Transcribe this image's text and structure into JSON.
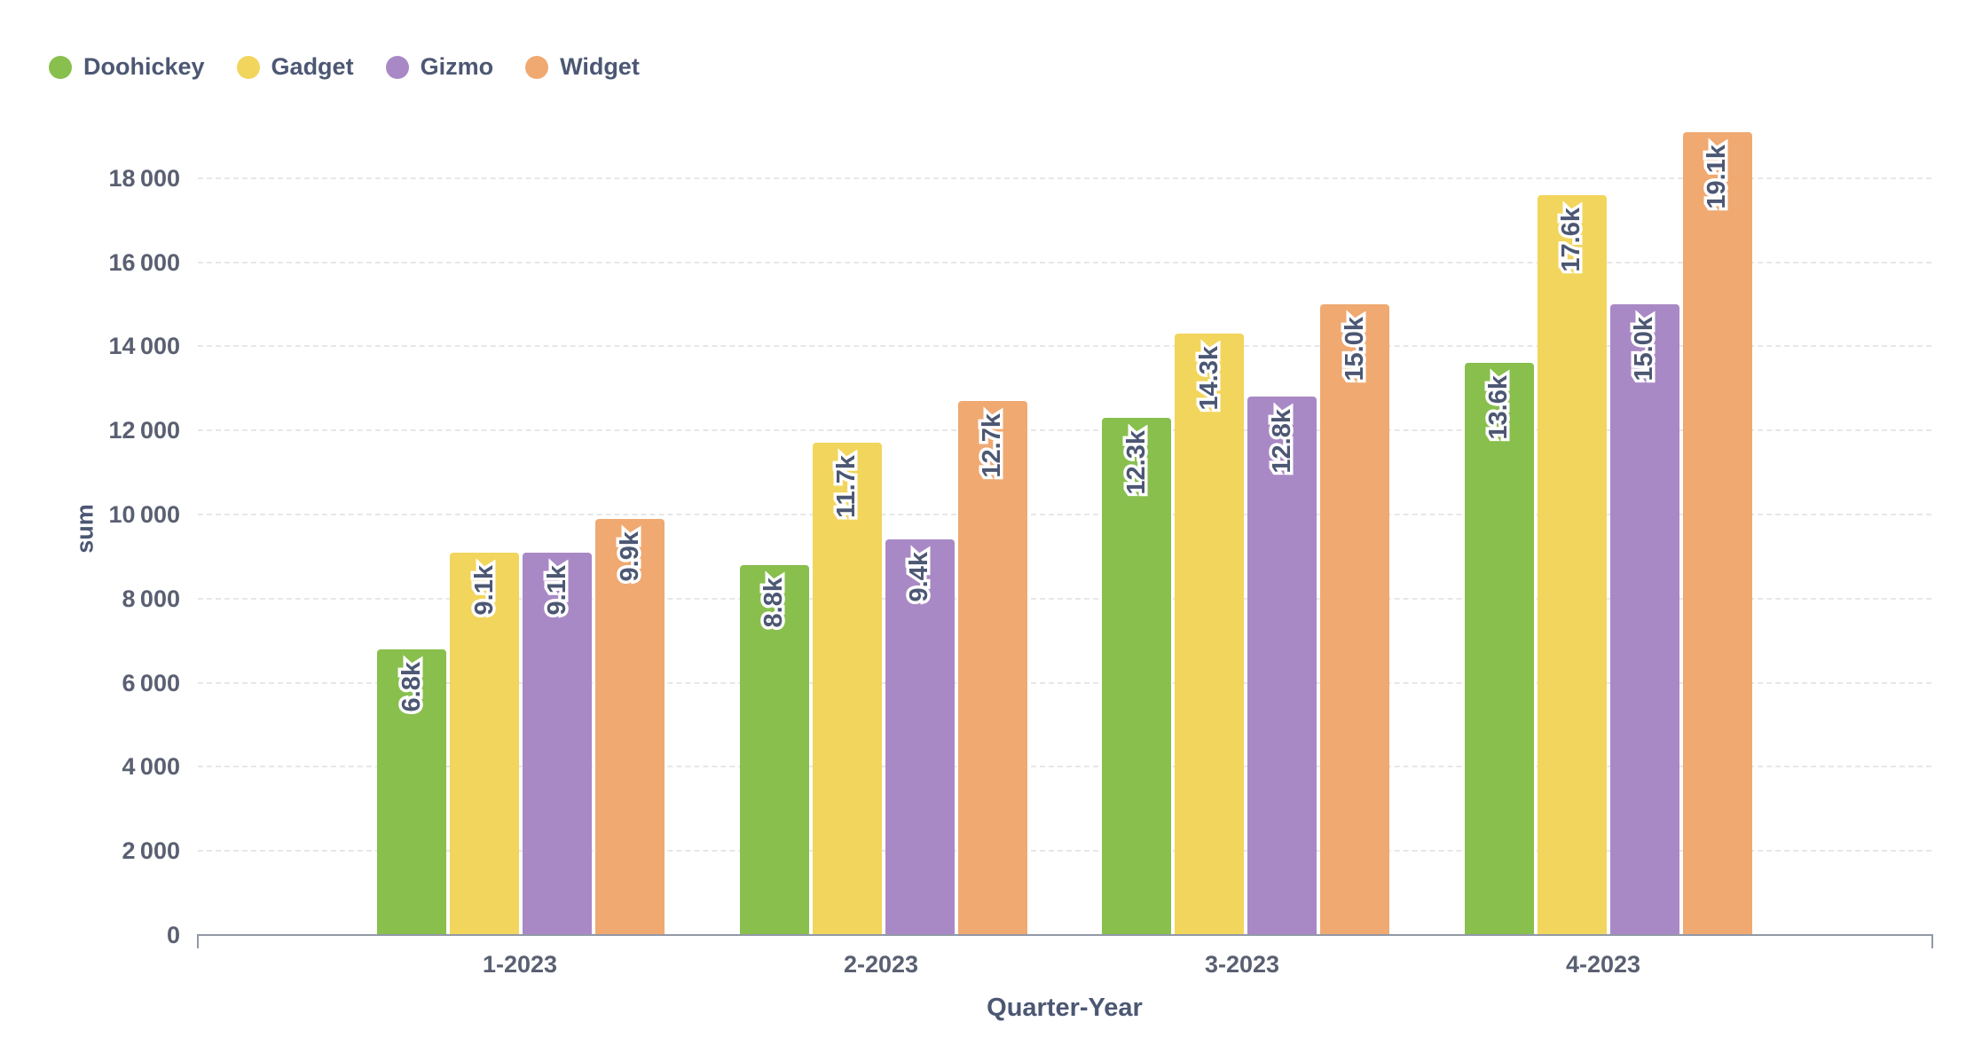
{
  "legend": [
    {
      "label": "Doohickey",
      "color": "#88BF4D"
    },
    {
      "label": "Gadget",
      "color": "#F2D55C"
    },
    {
      "label": "Gizmo",
      "color": "#A989C5"
    },
    {
      "label": "Widget",
      "color": "#EFA971"
    }
  ],
  "colors": {
    "axis_line": "#9299A6",
    "gridline": "#E7E7E9",
    "tick_text": "#5A6072",
    "title_text": "#4C5773",
    "bar_value_text": "#4C5773"
  },
  "chart_data": {
    "type": "bar",
    "title": "",
    "xlabel": "Quarter-Year",
    "ylabel": "sum",
    "categories": [
      "1-2023",
      "2-2023",
      "3-2023",
      "4-2023"
    ],
    "series": [
      {
        "name": "Doohickey",
        "color": "#88BF4D",
        "values": [
          6800,
          8800,
          12300,
          13600
        ],
        "labels": [
          "6.8k",
          "8.8k",
          "12.3k",
          "13.6k"
        ]
      },
      {
        "name": "Gadget",
        "color": "#F2D55C",
        "values": [
          9100,
          11700,
          14300,
          17600
        ],
        "labels": [
          "9.1k",
          "11.7k",
          "14.3k",
          "17.6k"
        ]
      },
      {
        "name": "Gizmo",
        "color": "#A989C5",
        "values": [
          9100,
          9400,
          12800,
          15000
        ],
        "labels": [
          "9.1k",
          "9.4k",
          "12.8k",
          "15.0k"
        ]
      },
      {
        "name": "Widget",
        "color": "#EFA971",
        "values": [
          9900,
          12700,
          15000,
          19100
        ],
        "labels": [
          "9.9k",
          "12.7k",
          "15.0k",
          "19.1k"
        ]
      }
    ],
    "ylim": [
      0,
      20000
    ],
    "y_ticks": [
      {
        "value": 0,
        "label": "0"
      },
      {
        "value": 2000,
        "label": "2 000"
      },
      {
        "value": 4000,
        "label": "4 000"
      },
      {
        "value": 6000,
        "label": "6 000"
      },
      {
        "value": 8000,
        "label": "8 000"
      },
      {
        "value": 10000,
        "label": "10 000"
      },
      {
        "value": 12000,
        "label": "12 000"
      },
      {
        "value": 14000,
        "label": "14 000"
      },
      {
        "value": 16000,
        "label": "16 000"
      },
      {
        "value": 18000,
        "label": "18 000"
      }
    ],
    "grid": "dashed-horizontal",
    "legend_position": "top-left",
    "value_labels": "rotated-inside-top"
  }
}
